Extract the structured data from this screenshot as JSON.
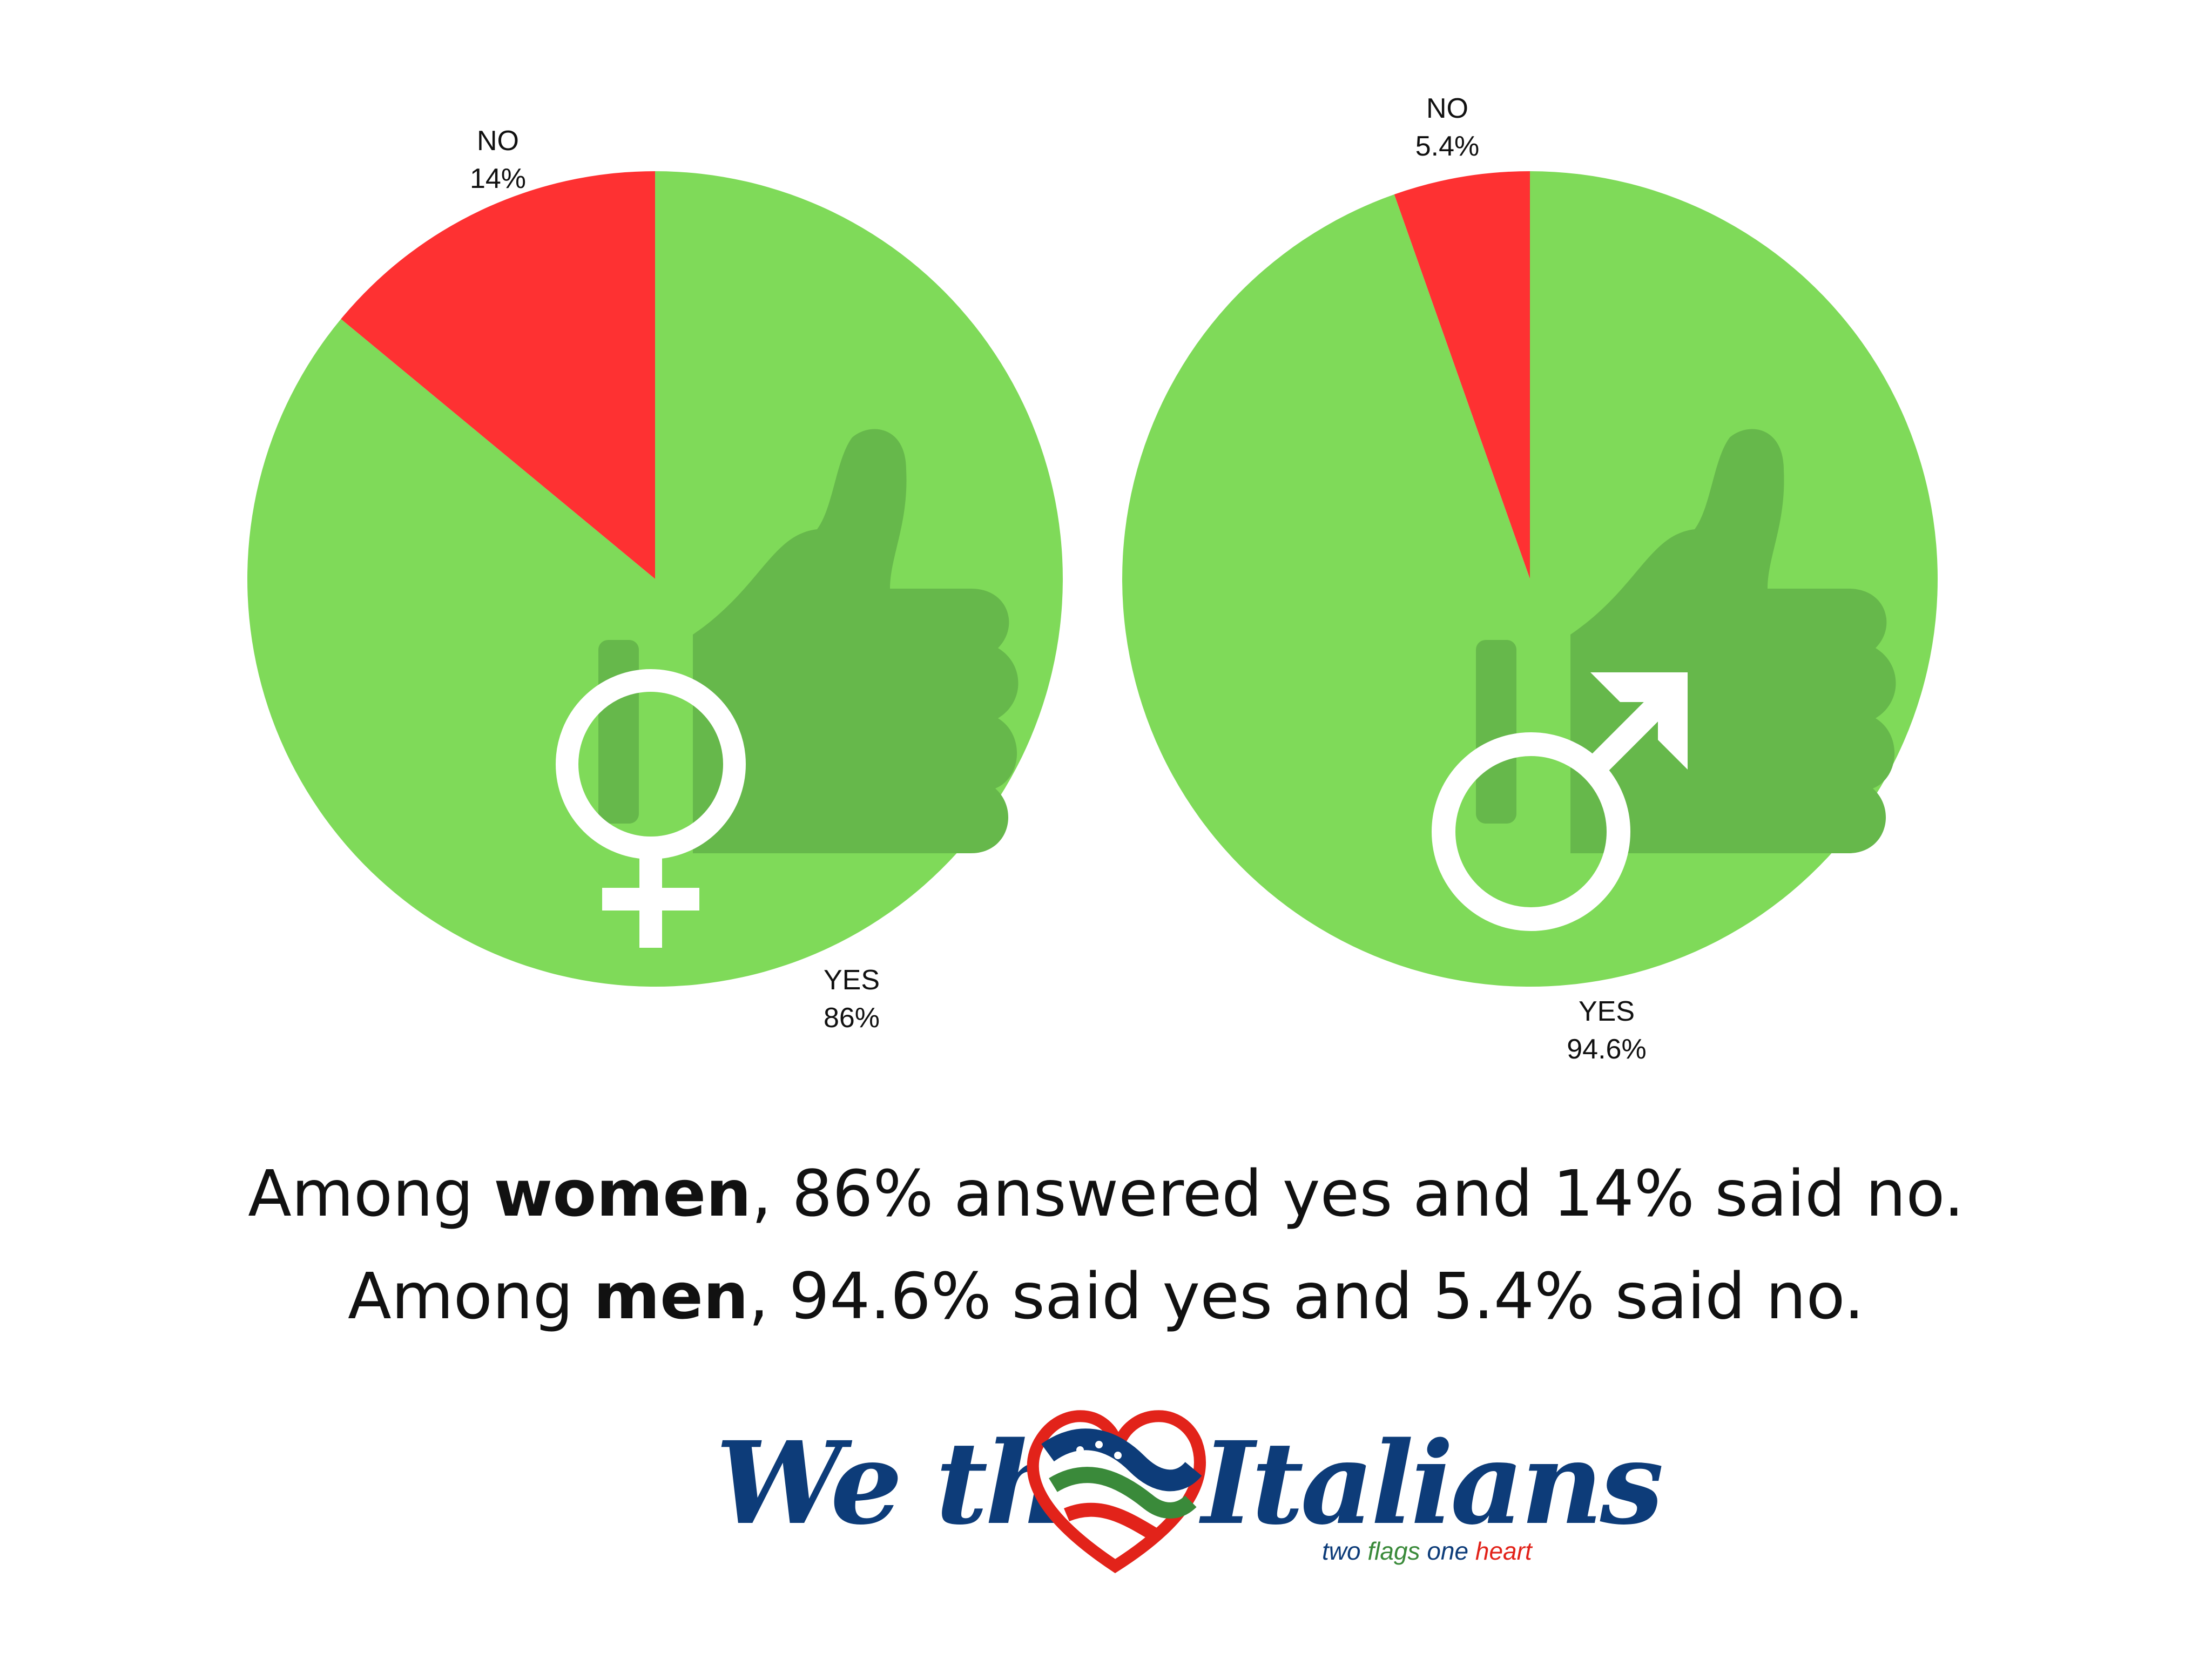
{
  "chart_data": [
    {
      "type": "pie",
      "group": "women",
      "categories": [
        "NO",
        "YES"
      ],
      "values": [
        14,
        86
      ],
      "value_labels": [
        "14%",
        "86%"
      ],
      "colors": [
        "#fe3132",
        "#7fda59"
      ],
      "icon": "female-symbol-icon"
    },
    {
      "type": "pie",
      "group": "men",
      "categories": [
        "NO",
        "YES"
      ],
      "values": [
        5.4,
        94.6
      ],
      "value_labels": [
        "5.4%",
        "94.6%"
      ],
      "colors": [
        "#fe3132",
        "#7fda59"
      ],
      "icon": "male-symbol-icon"
    }
  ],
  "caption": {
    "line1": {
      "pre": "Among ",
      "bold": "women",
      "post": ", 86% answered yes and 14% said no."
    },
    "line2": {
      "pre": "Among ",
      "bold": "men",
      "post": ", 94.6% said yes and 5.4% said no."
    }
  },
  "logo": {
    "word1": "We the",
    "word2": "Italians",
    "tagline": {
      "part1": "two ",
      "part2": "flags ",
      "part3": "one ",
      "part4": "heart"
    },
    "colors": {
      "navy": "#0d3c79",
      "green": "#3a8a3a",
      "red": "#e2231a"
    }
  },
  "colors": {
    "no": "#fe3132",
    "yes": "#7fda59",
    "thumb": "#66b84b",
    "symbol": "#ffffff"
  }
}
